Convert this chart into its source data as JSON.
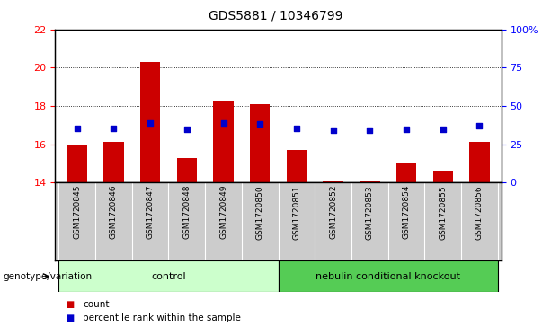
{
  "title": "GDS5881 / 10346799",
  "categories": [
    "GSM1720845",
    "GSM1720846",
    "GSM1720847",
    "GSM1720848",
    "GSM1720849",
    "GSM1720850",
    "GSM1720851",
    "GSM1720852",
    "GSM1720853",
    "GSM1720854",
    "GSM1720855",
    "GSM1720856"
  ],
  "bar_values": [
    16.0,
    16.1,
    20.3,
    15.3,
    18.3,
    18.1,
    15.7,
    14.1,
    14.1,
    15.0,
    14.6,
    16.1
  ],
  "bar_bottom": 14.0,
  "dot_values": [
    16.85,
    16.85,
    17.1,
    16.8,
    17.1,
    17.05,
    16.85,
    16.75,
    16.72,
    16.8,
    16.8,
    16.95
  ],
  "ylim_left": [
    14,
    22
  ],
  "ylim_right": [
    0,
    100
  ],
  "yticks_left": [
    14,
    16,
    18,
    20,
    22
  ],
  "yticks_right": [
    0,
    25,
    50,
    75,
    100
  ],
  "yticklabels_right": [
    "0",
    "25",
    "50",
    "75",
    "100%"
  ],
  "bar_color": "#cc0000",
  "dot_color": "#0000cc",
  "control_label": "control",
  "knockout_label": "nebulin conditional knockout",
  "genotype_label": "genotype/variation",
  "control_color": "#ccffcc",
  "knockout_color": "#55cc55",
  "tick_area_color": "#cccccc",
  "legend_count": "count",
  "legend_percentile": "percentile rank within the sample",
  "title_fontsize": 10,
  "axis_fontsize": 8,
  "tick_label_fontsize": 6.5,
  "group_label_fontsize": 8,
  "legend_fontsize": 7.5,
  "genotype_fontsize": 7.5,
  "n_control": 6,
  "n_knockout": 6
}
